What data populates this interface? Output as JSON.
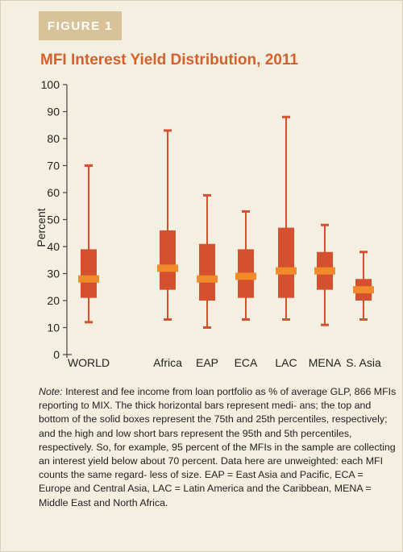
{
  "figure_label": "FIGURE 1",
  "colors": {
    "title": "#d4612b",
    "whisker": "#d4502f",
    "box": "#d4502f",
    "median": "#f08a2a",
    "tag_bg": "#d8c398",
    "axis": "#444444"
  },
  "note": {
    "lead": "Note:",
    "text": " Interest and fee income from loan portfolio as % of average GLP, 866 MFIs reporting to MIX. The thick horizontal bars represent medi- ans; the top and bottom of the solid boxes represent the 75th and 25th percentiles, respectively; and the high and low short bars represent the 95th and 5th percentiles, respectively. So, for example, 95 percent of the MFIs in the sample are collecting an interest yield below about 70 percent. Data here are unweighted: each MFI counts the same regard- less of size. EAP = East Asia and Pacific, ECA = Europe and Central Asia, LAC = Latin America and the Caribbean, MENA = Middle East and North Africa."
  },
  "chart_data": {
    "type": "boxplot",
    "title": "MFI Interest Yield Distribution, 2011",
    "ylabel": "Percent",
    "xlabel": "",
    "ylim": [
      0,
      100
    ],
    "yticks": [
      0,
      10,
      20,
      30,
      40,
      50,
      60,
      70,
      80,
      90,
      100
    ],
    "grid": false,
    "categories": [
      "WORLD",
      "Africa",
      "EAP",
      "ECA",
      "LAC",
      "MENA",
      "S. Asia"
    ],
    "series": [
      {
        "p5": 12,
        "p25": 21,
        "median": 28,
        "p75": 39,
        "p95": 70
      },
      {
        "p5": 13,
        "p25": 24,
        "median": 32,
        "p75": 46,
        "p95": 83
      },
      {
        "p5": 10,
        "p25": 20,
        "median": 28,
        "p75": 41,
        "p95": 59
      },
      {
        "p5": 13,
        "p25": 21,
        "median": 29,
        "p75": 39,
        "p95": 53
      },
      {
        "p5": 13,
        "p25": 21,
        "median": 31,
        "p75": 47,
        "p95": 88
      },
      {
        "p5": 11,
        "p25": 24,
        "median": 31,
        "p75": 38,
        "p95": 48
      },
      {
        "p5": 13,
        "p25": 20,
        "median": 24,
        "p75": 28,
        "p95": 38
      }
    ]
  }
}
